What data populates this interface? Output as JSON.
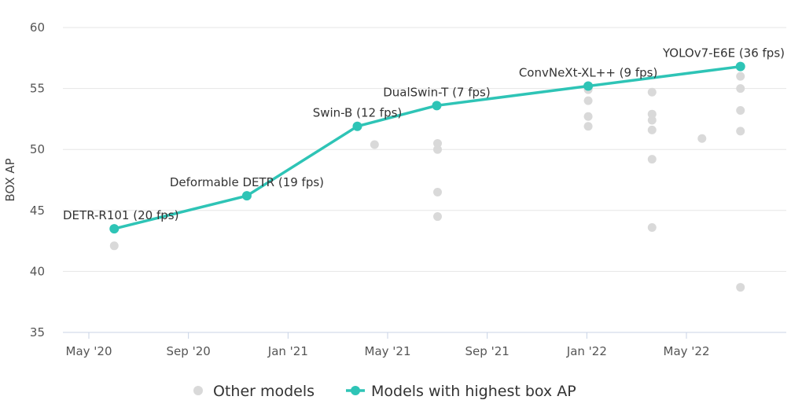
{
  "chart_data": {
    "type": "scatter",
    "ylabel": "BOX AP",
    "ylim": [
      35,
      60
    ],
    "yticks": [
      35,
      40,
      45,
      50,
      55,
      60
    ],
    "xticks": [
      "May '20",
      "Sep '20",
      "Jan '21",
      "May '21",
      "Sep '21",
      "Jan '22",
      "May '22"
    ],
    "grid": "horizontal",
    "legend_position": "bottom-center",
    "series": [
      {
        "name": "Other models",
        "color": "#d9d9d9",
        "points": [
          {
            "x": "2020-06-01",
            "y": 42.1
          },
          {
            "x": "2021-04-15",
            "y": 50.4
          },
          {
            "x": "2021-07-01",
            "y": 50.5
          },
          {
            "x": "2021-07-01",
            "y": 50.0
          },
          {
            "x": "2021-07-01",
            "y": 46.5
          },
          {
            "x": "2021-07-01",
            "y": 44.5
          },
          {
            "x": "2022-01-01",
            "y": 54.9
          },
          {
            "x": "2022-01-01",
            "y": 54.0
          },
          {
            "x": "2022-01-01",
            "y": 52.7
          },
          {
            "x": "2022-01-01",
            "y": 51.9
          },
          {
            "x": "2022-03-20",
            "y": 54.7
          },
          {
            "x": "2022-03-20",
            "y": 52.9
          },
          {
            "x": "2022-03-20",
            "y": 52.4
          },
          {
            "x": "2022-03-20",
            "y": 51.6
          },
          {
            "x": "2022-03-20",
            "y": 49.2
          },
          {
            "x": "2022-03-20",
            "y": 43.6
          },
          {
            "x": "2022-05-20",
            "y": 50.9
          },
          {
            "x": "2022-07-06",
            "y": 56.0
          },
          {
            "x": "2022-07-06",
            "y": 55.0
          },
          {
            "x": "2022-07-06",
            "y": 53.2
          },
          {
            "x": "2022-07-06",
            "y": 51.5
          },
          {
            "x": "2022-07-06",
            "y": 38.7
          }
        ]
      },
      {
        "name": "Models with highest box AP",
        "color": "#2ec4b6",
        "points": [
          {
            "x": "2020-06-01",
            "y": 43.5,
            "label": "DETR-R101 (20 fps)"
          },
          {
            "x": "2020-11-10",
            "y": 46.2,
            "label": "Deformable DETR (19 fps)"
          },
          {
            "x": "2021-03-25",
            "y": 51.9,
            "label": "Swin-B (12 fps)"
          },
          {
            "x": "2021-06-30",
            "y": 53.6,
            "label": "DualSwin-T (7 fps)"
          },
          {
            "x": "2022-01-01",
            "y": 55.2,
            "label": "ConvNeXt-XL++ (9 fps)"
          },
          {
            "x": "2022-07-06",
            "y": 56.8,
            "label": "YOLOv7-E6E (36 fps)"
          }
        ]
      }
    ]
  }
}
